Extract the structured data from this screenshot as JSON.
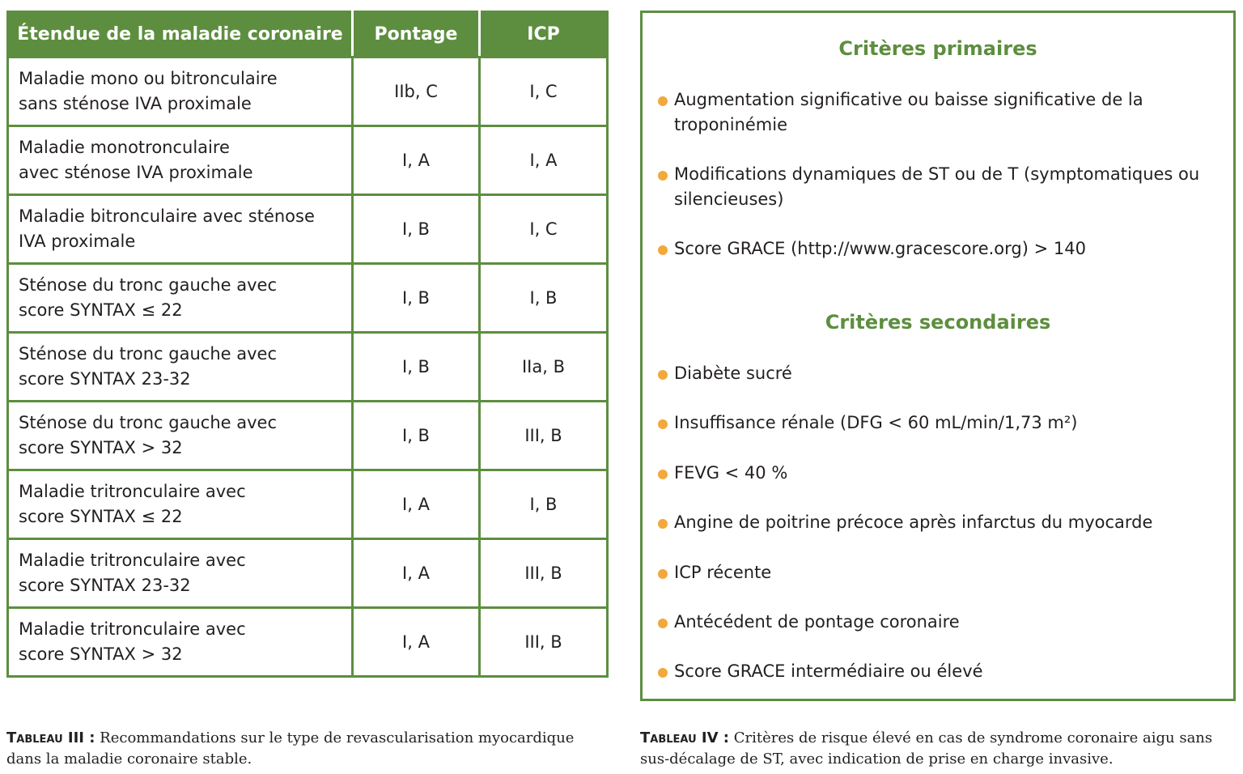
{
  "table3": {
    "headers": [
      "Étendue de la maladie coronaire",
      "Pontage",
      "ICP"
    ],
    "rows": [
      {
        "label": "Maladie mono ou bitronculaire\nsans sténose IVA proximale",
        "pontage": "IIb, C",
        "icp": "I, C"
      },
      {
        "label": "Maladie monotronculaire\navec sténose IVA proximale",
        "pontage": "I, A",
        "icp": "I, A"
      },
      {
        "label": "Maladie bitronculaire avec sténose\nIVA proximale",
        "pontage": "I, B",
        "icp": "I, C"
      },
      {
        "label": "Sténose du tronc gauche avec\nscore SYNTAX ≤ 22",
        "pontage": "I, B",
        "icp": "I, B"
      },
      {
        "label": "Sténose du tronc gauche avec\nscore SYNTAX 23-32",
        "pontage": "I, B",
        "icp": "IIa, B"
      },
      {
        "label": "Sténose du tronc gauche avec\nscore SYNTAX > 32",
        "pontage": "I, B",
        "icp": "III, B"
      },
      {
        "label": "Maladie tritronculaire avec\nscore SYNTAX ≤ 22",
        "pontage": "I, A",
        "icp": "I, B"
      },
      {
        "label": "Maladie tritronculaire avec\nscore SYNTAX 23-32",
        "pontage": "I, A",
        "icp": "III, B"
      },
      {
        "label": "Maladie tritronculaire avec\nscore SYNTAX > 32",
        "pontage": "I, A",
        "icp": "III, B"
      }
    ],
    "caption_label": "Tableau III :",
    "caption_text": " Recommandations sur le type de revascularisation myocardique",
    "caption_text2": "dans la maladie coronaire stable."
  },
  "table4": {
    "primary_title": "Critères primaires",
    "primary_items": [
      "Augmentation significative ou baisse significative de la troponinémie",
      "Modifications dynamiques de ST ou de T (symptomatiques ou silencieuses)",
      "Score GRACE (http://www.gracescore.org) > 140"
    ],
    "secondary_title": "Critères secondaires",
    "secondary_items": [
      "Diabète sucré",
      "Insuffisance rénale (DFG < 60 mL/min/1,73 m²)",
      "FEVG < 40 %",
      "Angine de poitrine précoce après infarctus du myocarde",
      "ICP récente",
      "Antécédent de pontage coronaire",
      "Score GRACE intermédiaire ou élevé"
    ],
    "caption_label": "Tableau IV :",
    "caption_text": " Critères de risque élevé en cas de syndrome coronaire aigu sans",
    "caption_text2": "sus-décalage de ST, avec indication de prise en charge invasive."
  },
  "colors": {
    "green": "#5d8e3f",
    "bullet": "#f2a93b"
  }
}
